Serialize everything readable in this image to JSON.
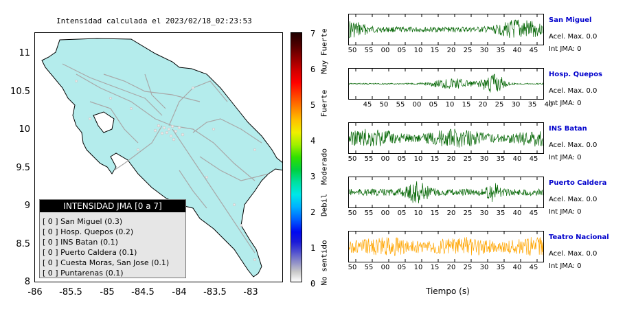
{
  "map": {
    "title": "Intensidad calculada el 2023/02/18_02:23:53",
    "y_ticks": [
      "11",
      "10.5",
      "10",
      "9.5",
      "9",
      "8.5",
      "8"
    ],
    "x_ticks": [
      "-86",
      "-85.5",
      "-85",
      "-84.5",
      "-84",
      "-83.5",
      "-83"
    ],
    "land_color": "#b4ecec",
    "road_color": "#a8a8a8"
  },
  "legend": {
    "title": "INTENSIDAD JMA [0 a 7]",
    "rows": [
      "[ 0 ]  San Miguel (0.3)",
      "[ 0 ]  Hosp. Quepos (0.2)",
      "[ 0 ]  INS Batan (0.1)",
      "[ 0 ]  Puerto Caldera (0.1)",
      "[ 0 ]  Cuesta Moras, San Jose (0.1)",
      "[ 0 ]  Puntarenas (0.1)"
    ]
  },
  "colorbar": {
    "numbers": [
      "7",
      "6",
      "5",
      "4",
      "3",
      "2",
      "1",
      "0"
    ],
    "levels": [
      "Muy Fuerte",
      "Fuerte",
      "Moderado",
      "Debil",
      "No sentido"
    ]
  },
  "stations": [
    {
      "name": "San Miguel",
      "acel": "Acel. Max. 0.0",
      "jma": "Int JMA: 0",
      "color": "#006400",
      "ticks": [
        "50",
        "55",
        "00",
        "05",
        "10",
        "15",
        "20",
        "25",
        "30",
        "35",
        "40",
        "45"
      ]
    },
    {
      "name": "Hosp. Quepos",
      "acel": "Acel. Max. 0.0",
      "jma": "Int JMA: 0",
      "color": "#006400",
      "ticks": [
        "45",
        "50",
        "55",
        "00",
        "05",
        "10",
        "15",
        "20",
        "25",
        "30",
        "35",
        "40"
      ]
    },
    {
      "name": "INS Batan",
      "acel": "Acel. Max. 0.0",
      "jma": "Int JMA: 0",
      "color": "#006400",
      "ticks": [
        "50",
        "55",
        "00",
        "05",
        "10",
        "15",
        "20",
        "25",
        "30",
        "35",
        "40",
        "45"
      ]
    },
    {
      "name": "Puerto Caldera",
      "acel": "Acel. Max. 0.0",
      "jma": "Int JMA: 0",
      "color": "#006400",
      "ticks": [
        "50",
        "55",
        "00",
        "05",
        "10",
        "15",
        "20",
        "25",
        "30",
        "35",
        "40",
        "45"
      ]
    },
    {
      "name": "Teatro Nacional",
      "acel": "Acel. Max. 0.0",
      "jma": "Int JMA: 0",
      "color": "#ffa500",
      "ticks": [
        "50",
        "55",
        "00",
        "05",
        "10",
        "15",
        "20",
        "25",
        "30",
        "35",
        "40",
        "45"
      ]
    }
  ],
  "time_axis_label": "Tiempo (s)"
}
